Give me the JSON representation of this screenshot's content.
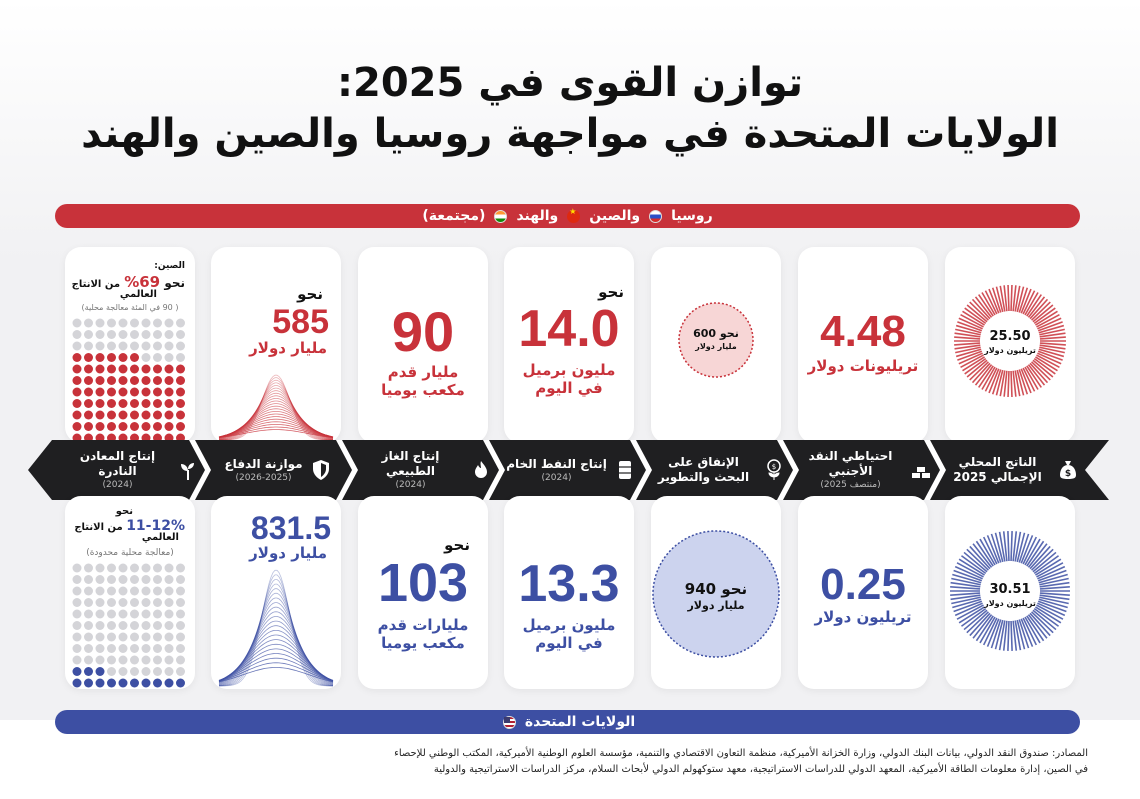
{
  "title": {
    "line1": "توازن القوى في 2025:",
    "line2": "الولايات المتحدة في مواجهة روسيا والصين والهند"
  },
  "top_band": {
    "russia": "روسيا",
    "china": "والصين",
    "india": "والهند",
    "combined": "(مجتمعة)"
  },
  "bottom_band": {
    "label": "الولايات المتحدة"
  },
  "categories": [
    {
      "title": "الناتج المحلي الإجمالي 2025",
      "sub": "",
      "icon": "money-bag-icon"
    },
    {
      "title": "احتياطي النقد الأجنبي",
      "sub": "(منتصف 2025)",
      "icon": "gold-bars-icon"
    },
    {
      "title": "الإنفاق على البحث والتطوير",
      "sub": "",
      "icon": "coin-plant-icon"
    },
    {
      "title": "إنتاج النفط الخام",
      "sub": "(2024)",
      "icon": "oil-barrel-icon"
    },
    {
      "title": "إنتاج الغاز الطبيعي",
      "sub": "(2024)",
      "icon": "gas-flame-icon"
    },
    {
      "title": "موازنة الدفاع",
      "sub": "(2026-2025)",
      "icon": "shield-icon"
    },
    {
      "title": "إنتاج المعادن النادرة",
      "sub": "(2024)",
      "icon": "sprout-icon"
    }
  ],
  "opponents": {
    "gdp": {
      "value": "25.50",
      "unit": "تريليون دولار",
      "fraction": 0.455
    },
    "reserves": {
      "value": "4.48",
      "unit": "تريليونات دولار"
    },
    "rnd": {
      "value": "نحو 600",
      "unit": "مليار دولار"
    },
    "oil": {
      "prefix": "نحو",
      "value": "14.0",
      "unit": "مليون برميل",
      "unit2": "في اليوم"
    },
    "gas": {
      "value": "90",
      "unit": "مليار قدم",
      "unit2": "مكعب يوميا"
    },
    "defense": {
      "prefix": "نحو",
      "value": "585",
      "unit": "مليار دولار"
    },
    "rare_earth": {
      "label": "الصين:",
      "prefix": "نحو",
      "percent": "69%",
      "suffix": "من الانتاج",
      "suffix2": "العالمي",
      "note": "( 90 في المئة معالجة محلية)",
      "share": 0.69
    }
  },
  "usa": {
    "gdp": {
      "value": "30.51",
      "unit": "تريليون دولار",
      "fraction": 0.545
    },
    "reserves": {
      "value": "0.25",
      "unit": "تريليون دولار"
    },
    "rnd": {
      "value": "نحو 940",
      "unit": "مليار دولار"
    },
    "oil": {
      "value": "13.3",
      "unit": "مليون برميل",
      "unit2": "في اليوم"
    },
    "gas": {
      "prefix": "نحو",
      "value": "103",
      "unit": "مليارات قدم",
      "unit2": "مكعب يوميا"
    },
    "defense": {
      "value": "831.5",
      "unit": "مليار دولار"
    },
    "rare_earth": {
      "prefix": "نحو",
      "percent": "11-12%",
      "suffix": "من الانتاج",
      "suffix2": "العالمي",
      "note": "(معالجة محلية محدودة)",
      "share": 0.115
    }
  },
  "sources": {
    "line1": "المصادر: صندوق النقد الدولي، بيانات البنك الدولي، وزارة الخزانة الأميركية، منظمة التعاون الاقتصادي والتنمية، مؤسسة العلوم الوطنية الأميركية، المكتب الوطني للإحصاء",
    "line2": "في الصين، إدارة معلومات الطاقة الأميركية، المعهد الدولي للدراسات الاستراتيجية، معهد ستوكهولم الدولي لأبحاث السلام، مركز الدراسات الاستراتيجية والدولية"
  },
  "colors": {
    "red": "#c8323a",
    "blue": "#3d4fa3",
    "dark": "#1f1f21",
    "gray_dot": "#d4d4d8"
  }
}
